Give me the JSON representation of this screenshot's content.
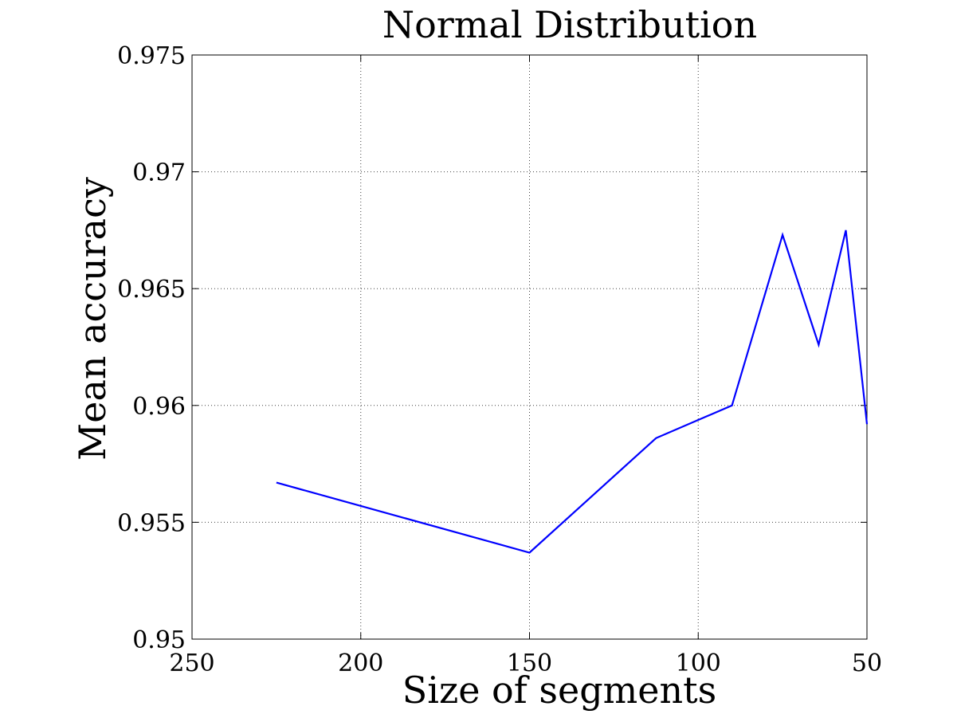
{
  "chart_data": {
    "type": "line",
    "title": "Normal Distribution",
    "xlabel": "Size of segments",
    "ylabel": "Mean accuracy",
    "x_reversed": true,
    "xlim": [
      250,
      50
    ],
    "ylim": [
      0.95,
      0.975
    ],
    "x_ticks": [
      250,
      200,
      150,
      100,
      50
    ],
    "x_tick_labels": [
      "250",
      "200",
      "150",
      "100",
      "50"
    ],
    "y_ticks": [
      0.95,
      0.955,
      0.96,
      0.965,
      0.97,
      0.975
    ],
    "y_tick_labels": [
      "0.95",
      "0.955",
      "0.96",
      "0.965",
      "0.97",
      "0.975"
    ],
    "grid": true,
    "legend": false,
    "series": [
      {
        "color": "#0000ff",
        "x": [
          225,
          150,
          112.5,
          90,
          75,
          64.3,
          56.25,
          50
        ],
        "y": [
          0.9567,
          0.9537,
          0.9586,
          0.96,
          0.9673,
          0.9626,
          0.9675,
          0.9592
        ]
      }
    ]
  }
}
